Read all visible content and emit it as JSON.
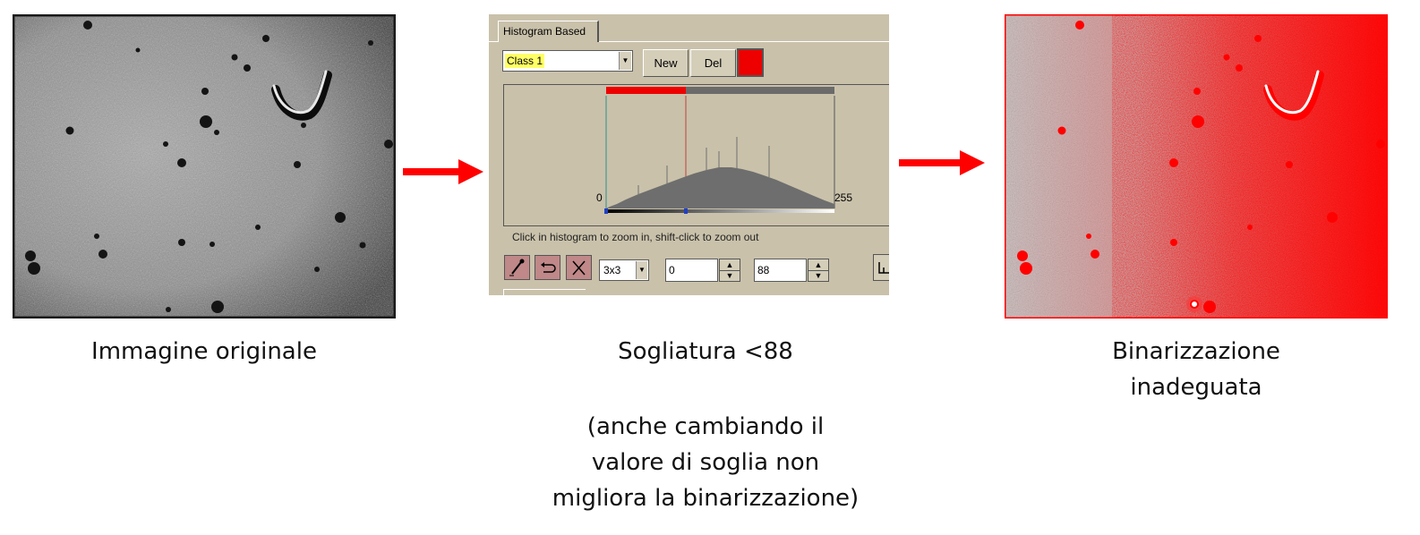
{
  "captions": {
    "original": "Immagine originale",
    "threshold": "Sogliatura <88",
    "note_line1": "(anche cambiando il",
    "note_line2": "valore di soglia non",
    "note_line3": "migliora la binarizzazione)",
    "result_line1": "Binarizzazione",
    "result_line2": "inadeguata"
  },
  "dialog": {
    "tab_label": "Histogram Based",
    "class_value": "Class 1",
    "new_label": "New",
    "del_label": "Del",
    "class_color": "#ee0000",
    "axis_min_label": "0",
    "axis_max_label": "255",
    "hint": "Click in histogram to zoom in, shift-click to zoom out",
    "kernel_value": "3x3",
    "threshold_low": "0",
    "threshold_high": "88"
  },
  "icons": {
    "combo_arrow": "chevron-down-icon",
    "tool1": "eyedropper-icon",
    "tool2": "undo-icon",
    "tool3": "clear-icon",
    "spin_up": "spin-up-icon",
    "spin_down": "spin-down-icon"
  },
  "colors": {
    "accent_red": "#ee0000",
    "dialog_bg": "#c9c1aa",
    "histogram_fill": "#6e6e6e"
  }
}
